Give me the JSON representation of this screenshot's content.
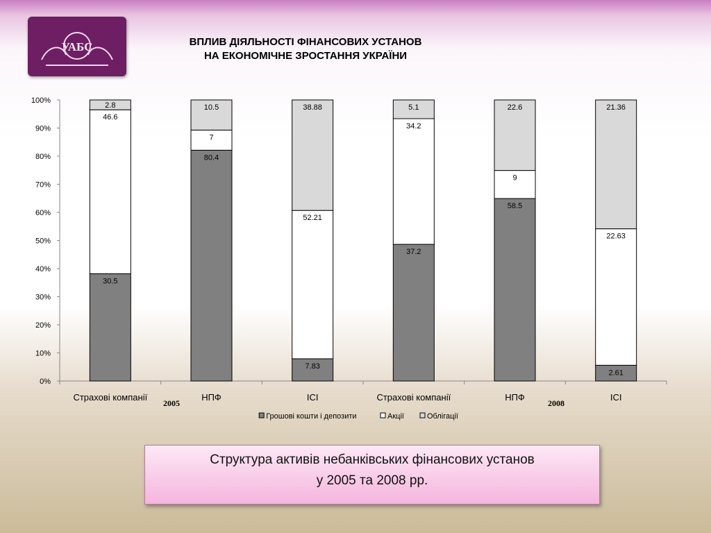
{
  "title": {
    "line1": "ВПЛИВ ДІЯЛЬНОСТІ ФІНАНСОВИХ УСТАНОВ",
    "line2": "НА ЕКОНОМІЧНЕ ЗРОСТАННЯ УКРАЇНИ"
  },
  "logo": {
    "text": "УАБС",
    "color": "#6e1e63"
  },
  "caption": {
    "line1": "Структура активів небанківських фінансових установ",
    "line2": "у 2005 та 2008 рр."
  },
  "chart_data": {
    "type": "bar",
    "stacked": true,
    "categories": [
      "Страхові компанії",
      "НПФ",
      "ІСІ",
      "Страхові компанії",
      "НПФ",
      "ІСІ"
    ],
    "group_labels": [
      "2005",
      "2008"
    ],
    "series": [
      {
        "name": "Грошові кошти і депозити",
        "color": "#808080",
        "values": [
          30.5,
          80.4,
          7.83,
          37.2,
          58.5,
          2.61
        ]
      },
      {
        "name": "Акції",
        "color": "#ffffff",
        "values": [
          46.6,
          7,
          52.21,
          34.2,
          9,
          22.63
        ]
      },
      {
        "name": "Облігації",
        "color": "#d9d9d9",
        "values": [
          2.8,
          10.5,
          38.88,
          5.1,
          22.6,
          21.36
        ]
      }
    ],
    "ylim": [
      0,
      100
    ],
    "yticks": [
      "0%",
      "10%",
      "20%",
      "30%",
      "40%",
      "50%",
      "60%",
      "70%",
      "80%",
      "90%",
      "100%"
    ],
    "grid": false,
    "legend": "bottom"
  }
}
